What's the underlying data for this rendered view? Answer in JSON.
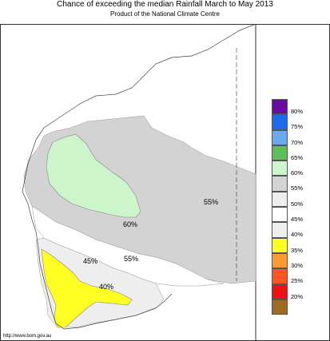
{
  "title": "Chance of exceeding the median Rainfall March to May 2013",
  "subtitle": "Product of the National Climate Centre",
  "source_url": "http://www.bom.gov.au",
  "legend": {
    "bins": [
      {
        "label": "80%",
        "color": "#6a0aa0"
      },
      {
        "label": "75%",
        "color": "#1c6bea"
      },
      {
        "label": "70%",
        "color": "#6aa9ee"
      },
      {
        "label": "65%",
        "color": "#5cbf5c"
      },
      {
        "label": "60%",
        "color": "#ccf5cc"
      },
      {
        "label": "55%",
        "color": "#d3d3d3"
      },
      {
        "label": "50%",
        "color": "#eeeeee"
      },
      {
        "label": "45%",
        "color": "#ffffff"
      },
      {
        "label": "40%",
        "color": "#eeeeee"
      },
      {
        "label": "35%",
        "color": "#ffff22"
      },
      {
        "label": "30%",
        "color": "#ff9933"
      },
      {
        "label": "25%",
        "color": "#ff5522"
      },
      {
        "label": "20%",
        "color": "#ee1111"
      },
      {
        "label": "",
        "color": "#a06a22"
      }
    ]
  },
  "map": {
    "contour_labels": [
      "60%",
      "55%",
      "55%",
      "45%",
      "40%"
    ],
    "region_colors": {
      "ocean": "#ffffff",
      "band_50_55": "#d3d3d3",
      "band_60_65": "#ccf5cc",
      "band_45_50": "#ffffff",
      "band_40_45": "#eeeeee",
      "band_35_40": "#ffff22"
    }
  }
}
